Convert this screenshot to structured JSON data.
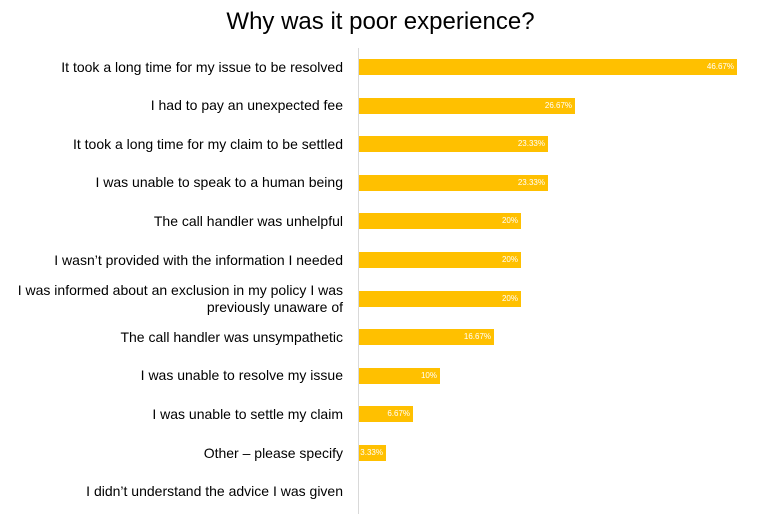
{
  "chart_data": {
    "type": "bar",
    "orientation": "horizontal",
    "title": "Why was it poor experience?",
    "categories": [
      "It took a long time for my issue to be resolved",
      "I had to pay an unexpected fee",
      "It took a long time for my claim to be settled",
      "I was unable to speak to a human being",
      "The call handler was unhelpful",
      "I wasn’t provided with the information I needed",
      "I was informed about an exclusion in my policy I was previously unaware of",
      "The call handler was unsympathetic",
      "I was unable to resolve my issue",
      "I was unable to settle my claim",
      "Other – please specify",
      "I didn’t understand the advice I was given"
    ],
    "values": [
      46.67,
      26.67,
      23.33,
      23.33,
      20,
      20,
      20,
      16.67,
      10,
      6.67,
      3.33,
      0
    ],
    "value_labels": [
      "46.67%",
      "26.67%",
      "23.33%",
      "23.33%",
      "20%",
      "20%",
      "20%",
      "16.67%",
      "10%",
      "6.67%",
      "3.33%",
      null
    ],
    "color": "#ffc000",
    "xlim": [
      0,
      50
    ]
  }
}
